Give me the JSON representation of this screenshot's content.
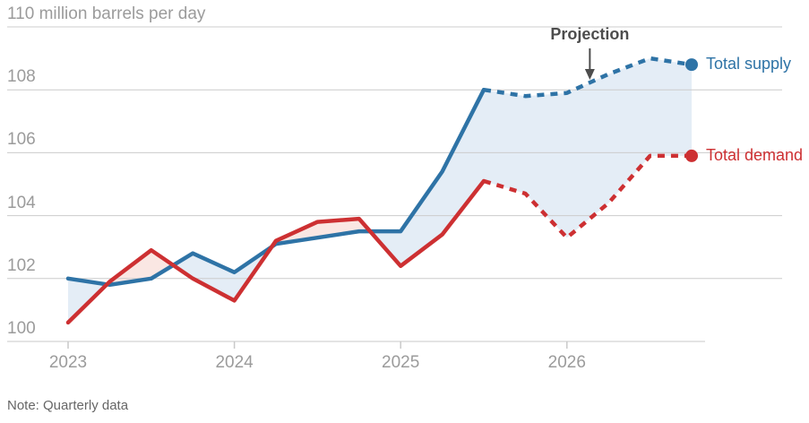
{
  "chart": {
    "top_axis_label": "110 million barrels per day",
    "projection_label": "Projection",
    "note": "Note: Quarterly data",
    "legend": {
      "supply_label": "Total supply",
      "demand_label": "Total demand"
    }
  },
  "colors": {
    "supply_line": "#2e73a6",
    "demand_line": "#cd3032",
    "supply_fill": "#e4edf6",
    "demand_fill": "#fae7e3",
    "grid": "#cccccc",
    "axis": "#c9c9c9",
    "tick_text": "#9b9b9b",
    "annotation": "#4d4d4d"
  },
  "chart_data": {
    "type": "line",
    "title": "",
    "xlabel": "",
    "ylabel": "million barrels per day",
    "ylim": [
      100,
      110
    ],
    "grid": true,
    "legend_position": "right-end-of-lines",
    "note": "Quarterly data; dashed segments from 2025 Q3 onward are projections",
    "categories": [
      "2023 Q1",
      "2023 Q2",
      "2023 Q3",
      "2023 Q4",
      "2024 Q1",
      "2024 Q2",
      "2024 Q3",
      "2024 Q4",
      "2025 Q1",
      "2025 Q2",
      "2025 Q3",
      "2025 Q4",
      "2026 Q1",
      "2026 Q2",
      "2026 Q3",
      "2026 Q4"
    ],
    "solid_until_index": 10,
    "series": [
      {
        "name": "Total supply",
        "values": [
          102.0,
          101.8,
          102.0,
          102.8,
          102.2,
          103.1,
          103.3,
          103.5,
          103.5,
          105.4,
          108.0,
          107.8,
          107.9,
          108.5,
          109.0,
          108.8
        ]
      },
      {
        "name": "Total demand",
        "values": [
          100.6,
          101.9,
          102.9,
          102.0,
          101.3,
          103.2,
          103.8,
          103.9,
          102.4,
          103.4,
          105.1,
          104.7,
          103.3,
          104.4,
          105.9,
          105.9
        ]
      }
    ],
    "yticks_gridlines": [
      110,
      108,
      106,
      104,
      102
    ],
    "yticks_labeled": [
      108,
      106,
      104,
      102,
      100
    ],
    "xticks": [
      {
        "label": "2023",
        "quarter_index": 0
      },
      {
        "label": "2024",
        "quarter_index": 4
      },
      {
        "label": "2025",
        "quarter_index": 8
      },
      {
        "label": "2026",
        "quarter_index": 12
      }
    ],
    "annotation": {
      "label": "Projection",
      "arrow_points_to_quarter_index": 12.4
    }
  }
}
